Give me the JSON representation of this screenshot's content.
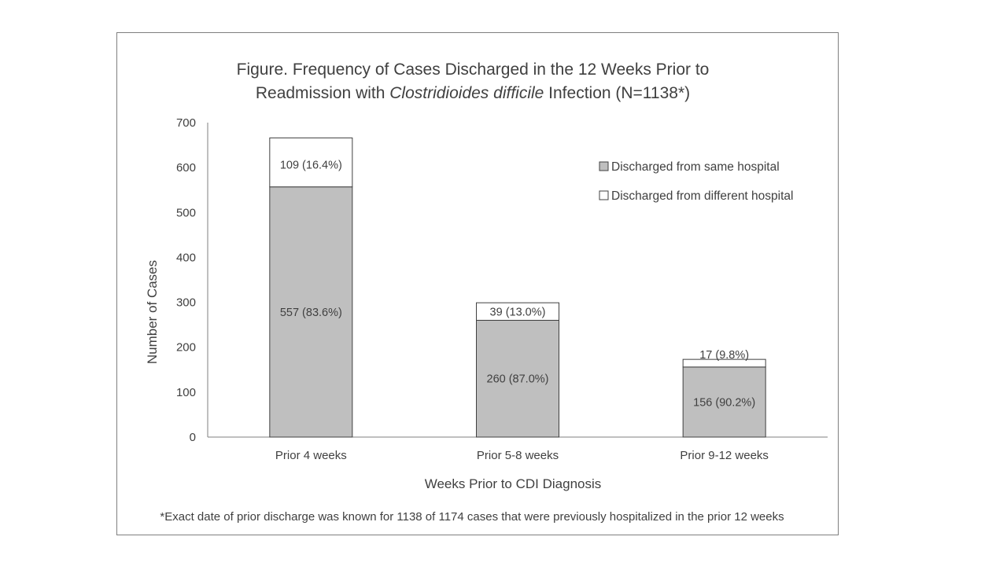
{
  "chart_data": {
    "type": "bar",
    "stacked": true,
    "title_lines": [
      [
        {
          "text": "Figure. Frequency of Cases Discharged in the 12 Weeks Prior to",
          "italic": false
        }
      ],
      [
        {
          "text": "Readmission with ",
          "italic": false
        },
        {
          "text": "Clostridioides difficile",
          "italic": true
        },
        {
          "text": " Infection (N=1138*)",
          "italic": false
        }
      ]
    ],
    "title": "Figure. Frequency of Cases Discharged in the 12 Weeks Prior to Readmission with Clostridioides difficile Infection (N=1138*)",
    "xlabel": "Weeks Prior to CDI Diagnosis",
    "ylabel": "Number of Cases",
    "ylim": [
      0,
      700
    ],
    "yticks": [
      0,
      100,
      200,
      300,
      400,
      500,
      600,
      700
    ],
    "grid": false,
    "categories": [
      "Prior 4 weeks",
      "Prior 5-8 weeks",
      "Prior 9-12 weeks"
    ],
    "series": [
      {
        "name": "Discharged from same hospital",
        "color": "#bfbfbf",
        "values": [
          557,
          260,
          156
        ],
        "labels": [
          "557 (83.6%)",
          "260 (87.0%)",
          "156 (90.2%)"
        ]
      },
      {
        "name": "Discharged from different hospital",
        "color": "#ffffff",
        "values": [
          109,
          39,
          17
        ],
        "labels": [
          "109 (16.4%)",
          "39 (13.0%)",
          "17 (9.8%)"
        ]
      }
    ],
    "legend_position": "top-right",
    "footnote": "*Exact date of prior discharge was known for 1138 of 1174 cases that were previously hospitalized in the prior 12 weeks"
  }
}
